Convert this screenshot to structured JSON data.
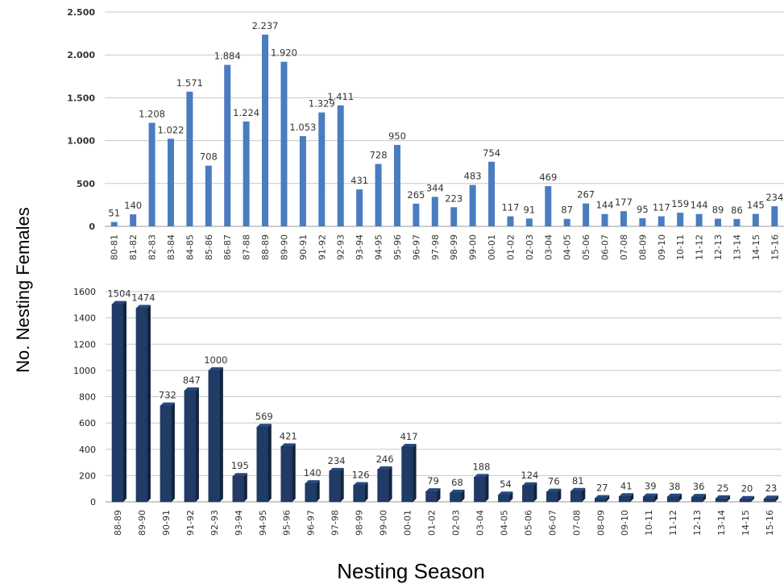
{
  "figure": {
    "ylabel": "No. Nesting Females",
    "xlabel": "Nesting Season"
  },
  "chart_data": [
    {
      "type": "bar",
      "color": "#4a7cc0",
      "ylim": [
        0,
        2500
      ],
      "yticks": [
        0,
        500,
        1000,
        1500,
        2000,
        2500
      ],
      "ytick_labels": [
        "0",
        "500",
        "1.000",
        "1.500",
        "2.000",
        "2.500"
      ],
      "grid": true,
      "categories": [
        "80-81",
        "81-82",
        "82-83",
        "83-84",
        "84-85",
        "85-86",
        "86-87",
        "87-88",
        "88-89",
        "89-90",
        "90-91",
        "91-92",
        "92-93",
        "93-94",
        "94-95",
        "95-96",
        "96-97",
        "97-98",
        "98-99",
        "99-00",
        "00-01",
        "01-02",
        "02-03",
        "03-04",
        "04-05",
        "05-06",
        "06-07",
        "07-08",
        "08-09",
        "09-10",
        "10-11",
        "11-12",
        "12-13",
        "13-14",
        "14-15",
        "15-16"
      ],
      "values": [
        51,
        140,
        1208,
        1022,
        1571,
        708,
        1884,
        1224,
        2237,
        1920,
        1053,
        1329,
        1411,
        431,
        728,
        950,
        265,
        344,
        223,
        483,
        754,
        117,
        91,
        469,
        87,
        267,
        144,
        177,
        95,
        117,
        159,
        144,
        89,
        86,
        145,
        234
      ],
      "value_labels": [
        "51",
        "140",
        "1.208",
        "1.022",
        "1.571",
        "708",
        "1.884",
        "1.224",
        "2.237",
        "1.920",
        "1.053",
        "1.329",
        "1.411",
        "431",
        "728",
        "950",
        "265",
        "344",
        "223",
        "483",
        "754",
        "117",
        "91",
        "469",
        "87",
        "267",
        "144",
        "177",
        "95",
        "117",
        "159",
        "144",
        "89",
        "86",
        "145",
        "234"
      ]
    },
    {
      "type": "bar",
      "color": "#1f3b66",
      "ylim": [
        0,
        1600
      ],
      "yticks": [
        0,
        200,
        400,
        600,
        800,
        1000,
        1200,
        1400,
        1600
      ],
      "ytick_labels": [
        "0",
        "200",
        "400",
        "600",
        "800",
        "1000",
        "1200",
        "1400",
        "1600"
      ],
      "grid": true,
      "categories": [
        "88-89",
        "89-90",
        "90-91",
        "91-92",
        "92-93",
        "93-94",
        "94-95",
        "95-96",
        "96-97",
        "97-98",
        "98-99",
        "99-00",
        "00-01",
        "01-02",
        "02-03",
        "03-04",
        "04-05",
        "05-06",
        "06-07",
        "07-08",
        "08-09",
        "09-10",
        "10-11",
        "11-12",
        "12-13",
        "13-14",
        "14-15",
        "15-16"
      ],
      "values": [
        1504,
        1474,
        732,
        847,
        1000,
        195,
        569,
        421,
        140,
        234,
        126,
        246,
        417,
        79,
        68,
        188,
        54,
        124,
        76,
        81,
        27,
        41,
        39,
        38,
        36,
        25,
        20,
        23
      ],
      "value_labels": [
        "1504",
        "1474",
        "732",
        "847",
        "1000",
        "195",
        "569",
        "421",
        "140",
        "234",
        "126",
        "246",
        "417",
        "79",
        "68",
        "188",
        "54",
        "124",
        "76",
        "81",
        "27",
        "41",
        "39",
        "38",
        "36",
        "25",
        "20",
        "23"
      ]
    }
  ]
}
